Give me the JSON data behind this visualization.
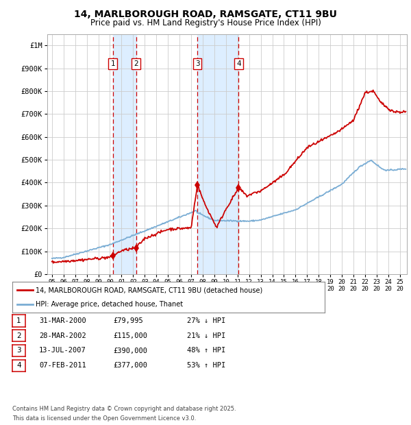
{
  "title": "14, MARLBOROUGH ROAD, RAMSGATE, CT11 9BU",
  "subtitle": "Price paid vs. HM Land Registry's House Price Index (HPI)",
  "hpi_label": "HPI: Average price, detached house, Thanet",
  "property_label": "14, MARLBOROUGH ROAD, RAMSGATE, CT11 9BU (detached house)",
  "footer1": "Contains HM Land Registry data © Crown copyright and database right 2025.",
  "footer2": "This data is licensed under the Open Government Licence v3.0.",
  "transactions": [
    {
      "num": 1,
      "date": "31-MAR-2000",
      "price": 79995,
      "pct": "27%",
      "dir": "↓",
      "year": 2000.25
    },
    {
      "num": 2,
      "date": "28-MAR-2002",
      "price": 115000,
      "pct": "21%",
      "dir": "↓",
      "year": 2002.25
    },
    {
      "num": 3,
      "date": "13-JUL-2007",
      "price": 390000,
      "pct": "48%",
      "dir": "↑",
      "year": 2007.54
    },
    {
      "num": 4,
      "date": "07-FEB-2011",
      "price": 377000,
      "pct": "53%",
      "dir": "↑",
      "year": 2011.1
    }
  ],
  "background_color": "#ffffff",
  "grid_color": "#cccccc",
  "hpi_color": "#7aadd4",
  "property_color": "#cc0000",
  "transaction_box_color": "#cc0000",
  "shade_color": "#ddeeff",
  "ylim": [
    0,
    1050000
  ],
  "yticks": [
    0,
    100000,
    200000,
    300000,
    400000,
    500000,
    600000,
    700000,
    800000,
    900000,
    1000000
  ],
  "ytick_labels": [
    "£0",
    "£100K",
    "£200K",
    "£300K",
    "£400K",
    "£500K",
    "£600K",
    "£700K",
    "£800K",
    "£900K",
    "£1M"
  ],
  "xlim_start": 1994.6,
  "xlim_end": 2025.6,
  "xtick_years": [
    1995,
    1996,
    1997,
    1998,
    1999,
    2000,
    2001,
    2002,
    2003,
    2004,
    2005,
    2006,
    2007,
    2008,
    2009,
    2010,
    2011,
    2012,
    2013,
    2014,
    2015,
    2016,
    2017,
    2018,
    2019,
    2020,
    2021,
    2022,
    2023,
    2024,
    2025
  ]
}
